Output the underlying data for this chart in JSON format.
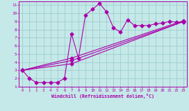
{
  "xlabel": "Windchill (Refroidissement éolien,°C)",
  "xlim": [
    -0.5,
    23.5
  ],
  "ylim": [
    1,
    11.5
  ],
  "xticks": [
    0,
    1,
    2,
    3,
    4,
    5,
    6,
    7,
    8,
    9,
    10,
    11,
    12,
    13,
    14,
    15,
    16,
    17,
    18,
    19,
    20,
    21,
    22,
    23
  ],
  "yticks": [
    1,
    2,
    3,
    4,
    5,
    6,
    7,
    8,
    9,
    10,
    11
  ],
  "bg_color": "#c5e8e8",
  "grid_color": "#9ecece",
  "line_color": "#aa00aa",
  "markersize": 2.5,
  "line1_x": [
    0,
    1,
    2,
    3,
    4,
    5,
    6,
    7,
    8,
    9,
    10,
    11,
    12,
    13,
    14,
    15,
    16,
    17,
    18,
    19,
    20,
    21,
    22,
    23
  ],
  "line1_y": [
    3.0,
    2.0,
    1.5,
    1.5,
    1.5,
    1.5,
    2.0,
    7.5,
    4.5,
    9.8,
    10.5,
    11.2,
    10.2,
    8.2,
    7.7,
    9.2,
    8.5,
    8.5,
    8.5,
    8.7,
    8.8,
    9.0,
    8.9,
    8.9
  ],
  "line2_x": [
    0,
    7,
    23
  ],
  "line2_y": [
    3.0,
    3.8,
    9.0
  ],
  "line3_x": [
    0,
    7,
    23
  ],
  "line3_y": [
    3.0,
    4.2,
    9.0
  ],
  "line4_x": [
    0,
    7,
    23
  ],
  "line4_y": [
    3.0,
    4.5,
    9.1
  ]
}
